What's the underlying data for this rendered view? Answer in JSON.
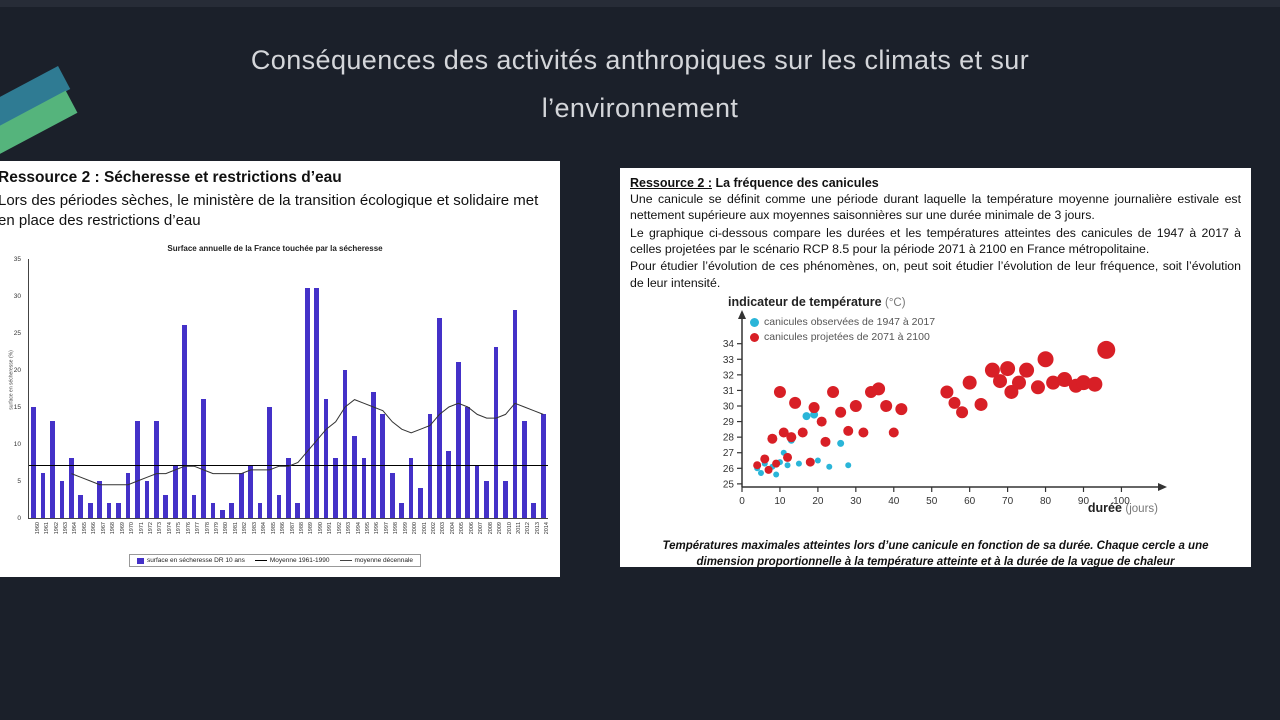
{
  "slide": {
    "title_line1": "Conséquences des activités anthropiques sur les climats et sur",
    "title_line2": "l’environnement"
  },
  "left_panel": {
    "heading": "Ressource 2 : Sécheresse et restrictions d’eau",
    "body": "Lors des périodes sèches, le ministère de la transition écologique et solidaire met en place des restrictions d’eau"
  },
  "right_panel": {
    "heading_prefix": "Ressource 2 :",
    "heading_rest": " La fréquence des canicules",
    "para1": "Une canicule se définit comme une période durant laquelle la température moyenne journalière estivale est nettement supérieure aux moyennes saisonnières sur une durée minimale de 3 jours.",
    "para2": "Le graphique ci-dessous compare les durées et les températures atteintes des canicules de 1947 à 2017 à celles projetées par le scénario RCP 8.5 pour la période 2071 à 2100 en France métropolitaine.",
    "para3": "Pour étudier l’évolution de ces phénomènes, on, peut soit étudier l’évolution de leur fréquence, soit l’évolution de leur intensité.",
    "caption": "Températures maximales atteintes lors d’une canicule en fonction de sa durée. Chaque cercle a une dimension proportionnelle à la température atteinte et à la durée de la vague de chaleur"
  },
  "chart_data": [
    {
      "type": "bar",
      "title": "Surface annuelle de la France touchée par la sécheresse",
      "ylabel": "surface en sécheresse (%)",
      "ylim": [
        0,
        35
      ],
      "yticks": [
        0,
        5,
        10,
        15,
        20,
        25,
        30,
        35
      ],
      "bar_color": "#4431c8",
      "categories": [
        "1960",
        "1961",
        "1962",
        "1963",
        "1964",
        "1965",
        "1966",
        "1967",
        "1968",
        "1969",
        "1970",
        "1971",
        "1972",
        "1973",
        "1974",
        "1975",
        "1976",
        "1977",
        "1978",
        "1979",
        "1980",
        "1981",
        "1982",
        "1983",
        "1984",
        "1985",
        "1986",
        "1987",
        "1988",
        "1989",
        "1990",
        "1991",
        "1992",
        "1993",
        "1994",
        "1995",
        "1996",
        "1997",
        "1998",
        "1999",
        "2000",
        "2001",
        "2002",
        "2003",
        "2004",
        "2005",
        "2006",
        "2007",
        "2008",
        "2009",
        "2010",
        "2011",
        "2012",
        "2013",
        "2014"
      ],
      "values": [
        15,
        6,
        13,
        5,
        8,
        3,
        2,
        5,
        2,
        2,
        6,
        13,
        5,
        13,
        3,
        7,
        26,
        3,
        16,
        2,
        1,
        2,
        6,
        7,
        2,
        15,
        3,
        8,
        2,
        31,
        31,
        16,
        8,
        20,
        11,
        8,
        17,
        14,
        6,
        2,
        8,
        4,
        14,
        27,
        9,
        21,
        15,
        7,
        5,
        23,
        5,
        28,
        13,
        2,
        14
      ],
      "mean_1961_1990": 7,
      "decennial_mean": [
        null,
        null,
        null,
        null,
        6,
        5.5,
        5,
        4.5,
        4.5,
        4.5,
        4.5,
        5,
        5.5,
        6,
        6,
        6.5,
        7,
        7,
        6.5,
        6,
        6,
        6,
        6,
        6.5,
        6.5,
        6.5,
        7,
        7,
        7.5,
        9,
        10.5,
        12,
        13,
        15,
        16,
        15.5,
        15,
        14.5,
        13,
        12,
        11.5,
        12,
        12.5,
        14,
        15,
        15.5,
        15,
        14,
        13.5,
        13.5,
        14,
        15.5,
        15,
        14.5,
        14
      ],
      "legend": [
        {
          "label": "surface en sécheresse DR 10 ans",
          "swatch": "bar",
          "color": "#4431c8"
        },
        {
          "label": "Moyenne 1961-1990",
          "swatch": "line",
          "color": "#000000"
        },
        {
          "label": "moyenne décennale",
          "swatch": "line",
          "color": "#444444"
        }
      ]
    },
    {
      "type": "scatter",
      "title": "indicateur de température",
      "title_unit": "(°C)",
      "xlabel": "durée",
      "xlabel_unit": "(jours)",
      "xlim": [
        0,
        107
      ],
      "ylim": [
        24.8,
        35.2
      ],
      "xticks": [
        0,
        10,
        20,
        30,
        40,
        50,
        60,
        70,
        80,
        90,
        100
      ],
      "yticks": [
        25,
        26,
        27,
        28,
        29,
        30,
        31,
        32,
        33,
        34
      ],
      "series": [
        {
          "name": "canicules observées de 1947 à 2017",
          "color": "#2ab5d8",
          "points": [
            [
              4,
              26.0,
              3
            ],
            [
              5,
              25.7,
              3
            ],
            [
              6,
              26.3,
              3
            ],
            [
              8,
              26.1,
              3
            ],
            [
              9,
              25.6,
              3
            ],
            [
              10,
              26.4,
              3
            ],
            [
              11,
              27.0,
              3
            ],
            [
              12,
              26.2,
              3
            ],
            [
              13,
              27.8,
              3.5
            ],
            [
              15,
              26.3,
              3
            ],
            [
              17,
              29.35,
              4
            ],
            [
              19,
              29.45,
              4
            ],
            [
              20,
              26.5,
              3
            ],
            [
              23,
              26.1,
              3
            ],
            [
              26,
              27.6,
              3.5
            ],
            [
              28,
              26.2,
              3
            ]
          ]
        },
        {
          "name": "canicules projetées de 2071 à 2100",
          "color": "#d81f26",
          "points": [
            [
              4,
              26.2,
              4
            ],
            [
              6,
              26.6,
              4.5
            ],
            [
              7,
              25.9,
              4
            ],
            [
              8,
              27.9,
              5
            ],
            [
              9,
              26.3,
              4
            ],
            [
              10,
              30.9,
              6
            ],
            [
              11,
              28.3,
              5
            ],
            [
              12,
              26.7,
              4.5
            ],
            [
              13,
              28.0,
              5
            ],
            [
              14,
              30.2,
              6
            ],
            [
              16,
              28.3,
              5
            ],
            [
              18,
              26.4,
              4.5
            ],
            [
              19,
              29.9,
              5.5
            ],
            [
              21,
              29.0,
              5
            ],
            [
              22,
              27.7,
              5
            ],
            [
              24,
              30.9,
              6
            ],
            [
              26,
              29.6,
              5.5
            ],
            [
              28,
              28.4,
              5
            ],
            [
              30,
              30.0,
              6
            ],
            [
              32,
              28.3,
              5
            ],
            [
              34,
              30.9,
              6
            ],
            [
              36,
              31.1,
              6.5
            ],
            [
              38,
              30.0,
              6
            ],
            [
              40,
              28.3,
              5
            ],
            [
              42,
              29.8,
              6
            ],
            [
              54,
              30.9,
              6.5
            ],
            [
              56,
              30.2,
              6
            ],
            [
              58,
              29.6,
              6
            ],
            [
              60,
              31.5,
              7
            ],
            [
              63,
              30.1,
              6.5
            ],
            [
              66,
              32.3,
              7.5
            ],
            [
              68,
              31.6,
              7
            ],
            [
              70,
              32.4,
              7.5
            ],
            [
              71,
              30.9,
              7
            ],
            [
              73,
              31.5,
              7
            ],
            [
              75,
              32.3,
              7.5
            ],
            [
              78,
              31.2,
              7
            ],
            [
              80,
              33.0,
              8
            ],
            [
              82,
              31.5,
              7
            ],
            [
              85,
              31.7,
              7.5
            ],
            [
              88,
              31.3,
              7
            ],
            [
              90,
              31.5,
              7.5
            ],
            [
              93,
              31.4,
              7.5
            ],
            [
              96,
              33.6,
              9
            ]
          ]
        }
      ]
    }
  ]
}
